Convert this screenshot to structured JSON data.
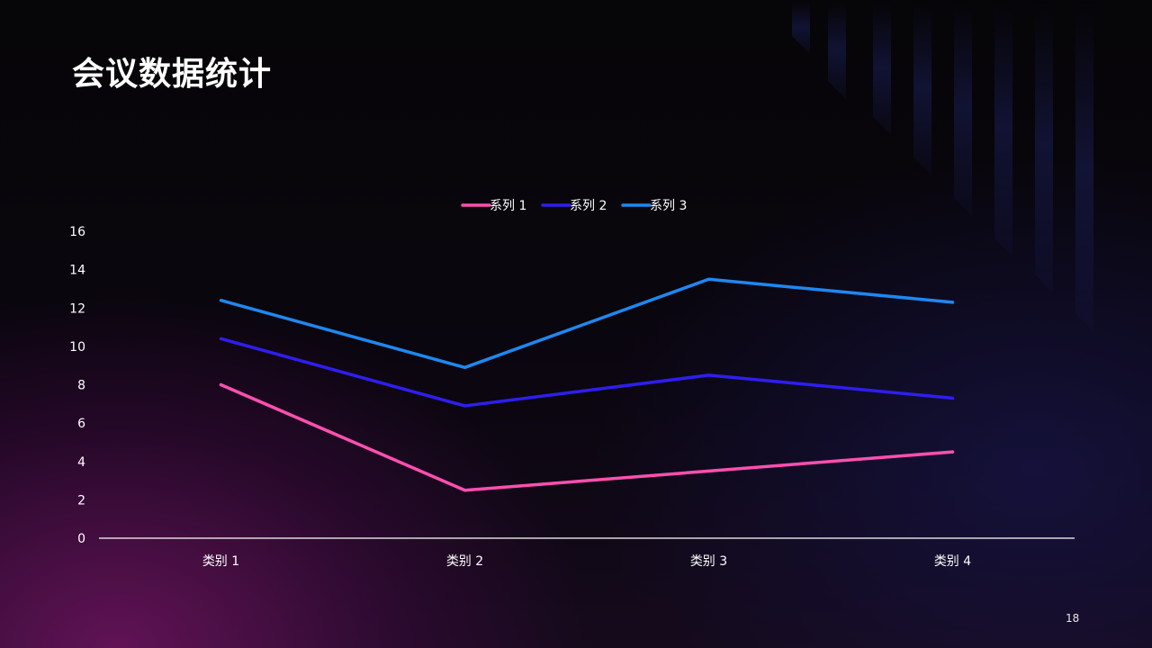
{
  "slide": {
    "title": "会议数据统计",
    "page_number": "18"
  },
  "chart_data": {
    "type": "line",
    "categories": [
      "类别 1",
      "类别 2",
      "类别 3",
      "类别 4"
    ],
    "series": [
      {
        "name": "系列 1",
        "values": [
          8.0,
          2.5,
          3.5,
          4.5
        ],
        "color": "#ff4fb0"
      },
      {
        "name": "系列 2",
        "values": [
          10.4,
          6.9,
          8.5,
          7.3
        ],
        "color": "#2e1ef0"
      },
      {
        "name": "系列 3",
        "values": [
          12.4,
          8.9,
          13.5,
          12.3
        ],
        "color": "#1e88f0"
      }
    ],
    "ylim": [
      0,
      16
    ],
    "yticks": [
      0,
      2,
      4,
      6,
      8,
      10,
      12,
      14,
      16
    ],
    "grid": false,
    "legend_position": "top-center",
    "title": "",
    "xlabel": "",
    "ylabel": ""
  }
}
